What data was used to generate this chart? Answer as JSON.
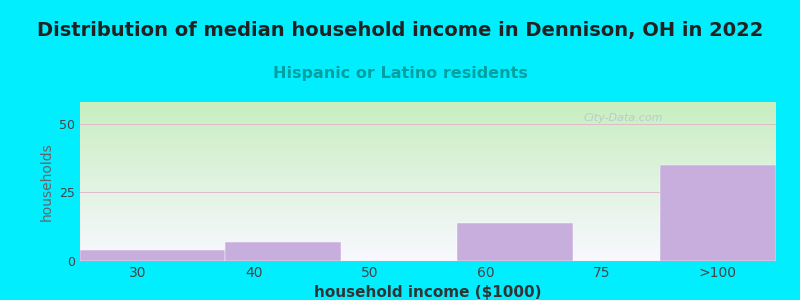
{
  "title": "Distribution of median household income in Dennison, OH in 2022",
  "subtitle": "Hispanic or Latino residents",
  "xlabel": "household income ($1000)",
  "ylabel": "households",
  "bar_categories": [
    "30",
    "40",
    "50",
    "60",
    "75",
    ">100"
  ],
  "bar_values": [
    4,
    7,
    0,
    14,
    0,
    35
  ],
  "bar_color": "#c8aedd",
  "bar_edge_color": "#c8aedd",
  "ylim": [
    0,
    58
  ],
  "yticks": [
    0,
    25,
    50
  ],
  "background_outer": "#00eeff",
  "bg_grad_top_left": "#c8eec0",
  "bg_grad_bottom_right": "#f0f0ff",
  "title_fontsize": 14,
  "subtitle_fontsize": 11.5,
  "subtitle_color": "#00a0a0",
  "xlabel_fontsize": 11,
  "ylabel_fontsize": 10,
  "watermark": "City-Data.com",
  "grid_color": "#ddbbcc",
  "grid_linewidth": 0.7
}
